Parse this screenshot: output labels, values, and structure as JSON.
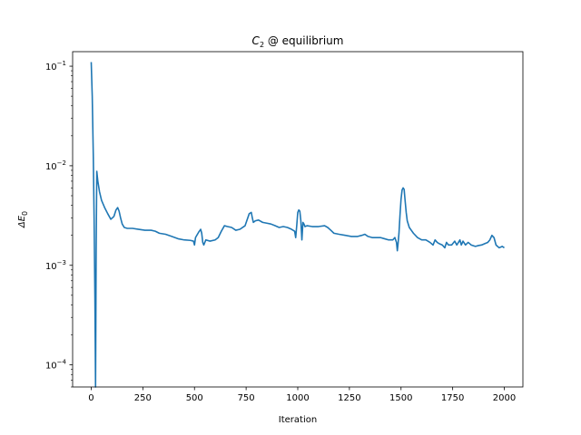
{
  "chart_data": {
    "type": "line",
    "title_base": "C",
    "title_sub": "2",
    "title_rest": " @ equilibrium",
    "xlabel": "Iteration",
    "ylabel_prefix": "ΔE",
    "ylabel_sub": "0",
    "xlim": [
      -90,
      2090
    ],
    "ylim": [
      6e-05,
      0.14
    ],
    "yscale": "log",
    "grid": false,
    "x_ticks": [
      0,
      250,
      500,
      750,
      1000,
      1250,
      1500,
      1750,
      2000
    ],
    "x_tick_labels": [
      "0",
      "250",
      "500",
      "750",
      "1000",
      "1250",
      "1500",
      "1750",
      "2000"
    ],
    "y_ticks": [
      0.0001,
      0.001,
      0.01,
      0.1
    ],
    "y_tick_bases": [
      "10",
      "10",
      "10",
      "10"
    ],
    "y_tick_exponents": [
      "−4",
      "−3",
      "−2",
      "−1"
    ],
    "line_color": "#1f77b4",
    "series": [
      {
        "x": [
          0,
          5,
          10,
          14,
          18,
          21,
          24,
          27,
          32,
          40,
          50,
          65,
          80,
          95,
          110,
          120,
          128,
          135,
          142,
          150,
          160,
          175,
          200,
          230,
          260,
          290,
          310,
          330,
          360,
          390,
          420,
          450,
          480,
          495,
          500,
          505,
          520,
          530,
          535,
          540,
          545,
          555,
          575,
          600,
          615,
          630,
          645,
          660,
          680,
          700,
          720,
          745,
          765,
          775,
          780,
          785,
          795,
          810,
          830,
          850,
          870,
          890,
          910,
          930,
          950,
          970,
          985,
          990,
          995,
          1000,
          1005,
          1010,
          1015,
          1020,
          1025,
          1030,
          1035,
          1045,
          1070,
          1100,
          1130,
          1145,
          1160,
          1175,
          1200,
          1230,
          1260,
          1290,
          1310,
          1325,
          1340,
          1360,
          1380,
          1400,
          1420,
          1440,
          1460,
          1470,
          1478,
          1482,
          1485,
          1490,
          1495,
          1500,
          1505,
          1510,
          1515,
          1520,
          1525,
          1530,
          1540,
          1560,
          1580,
          1600,
          1620,
          1640,
          1655,
          1665,
          1675,
          1685,
          1700,
          1712,
          1720,
          1730,
          1745,
          1760,
          1770,
          1778,
          1785,
          1792,
          1800,
          1812,
          1825,
          1840,
          1860,
          1875,
          1890,
          1905,
          1920,
          1930,
          1940,
          1950,
          1960,
          1975,
          1990,
          2000
        ],
        "values": [
          0.11,
          0.05,
          0.013,
          0.003,
          0.00045,
          6e-05,
          0.0015,
          0.0088,
          0.007,
          0.0055,
          0.0045,
          0.0038,
          0.0033,
          0.0029,
          0.0031,
          0.0036,
          0.0038,
          0.0035,
          0.003,
          0.0026,
          0.0024,
          0.00235,
          0.00235,
          0.0023,
          0.00225,
          0.00225,
          0.0022,
          0.0021,
          0.00205,
          0.00195,
          0.00185,
          0.0018,
          0.00178,
          0.00175,
          0.0016,
          0.0019,
          0.00215,
          0.0023,
          0.0021,
          0.0017,
          0.0016,
          0.0018,
          0.00175,
          0.0018,
          0.0019,
          0.0022,
          0.0025,
          0.00245,
          0.0024,
          0.00225,
          0.0023,
          0.0025,
          0.0033,
          0.0034,
          0.003,
          0.0027,
          0.0028,
          0.00285,
          0.0027,
          0.00265,
          0.0026,
          0.0025,
          0.0024,
          0.00245,
          0.0024,
          0.0023,
          0.0022,
          0.0019,
          0.0025,
          0.0034,
          0.0036,
          0.0035,
          0.0028,
          0.0018,
          0.0027,
          0.0026,
          0.00245,
          0.0025,
          0.00245,
          0.00245,
          0.0025,
          0.0024,
          0.00225,
          0.0021,
          0.00205,
          0.002,
          0.00195,
          0.00195,
          0.002,
          0.00205,
          0.00195,
          0.0019,
          0.0019,
          0.0019,
          0.00185,
          0.0018,
          0.0018,
          0.0019,
          0.0017,
          0.0014,
          0.0016,
          0.0021,
          0.0032,
          0.0046,
          0.0057,
          0.006,
          0.0058,
          0.0044,
          0.0034,
          0.0028,
          0.0024,
          0.0021,
          0.0019,
          0.0018,
          0.0018,
          0.0017,
          0.0016,
          0.0018,
          0.0017,
          0.00165,
          0.0016,
          0.0015,
          0.0017,
          0.0016,
          0.0016,
          0.00175,
          0.0016,
          0.0017,
          0.0018,
          0.0016,
          0.00175,
          0.0016,
          0.0017,
          0.0016,
          0.00155,
          0.00158,
          0.0016,
          0.00165,
          0.0017,
          0.0018,
          0.002,
          0.0019,
          0.0016,
          0.0015,
          0.00155,
          0.0015
        ]
      }
    ]
  }
}
